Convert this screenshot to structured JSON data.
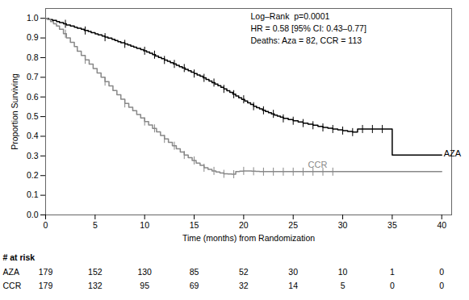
{
  "chart_data": {
    "type": "line",
    "line_style": "step",
    "grid": false,
    "xlabel": "Time (months) from Randomization",
    "ylabel": "Proportion Surviving",
    "xlim": [
      0,
      41
    ],
    "ylim": [
      0.0,
      1.05
    ],
    "xticks": [
      0,
      5,
      10,
      15,
      20,
      25,
      30,
      35,
      40
    ],
    "yticks": [
      {
        "value": 0.0,
        "label": "0.0"
      },
      0.1,
      0.2,
      0.3,
      0.4,
      0.5,
      0.6,
      0.7,
      0.8,
      0.9,
      {
        "value": 1.0,
        "label": "1.0"
      }
    ],
    "annotations": [
      "Log–Rank  p=0.0001\nHR = 0.58 [95% CI: 0.43–0.77]\nDeaths: Aza = 82, CCR = 113"
    ],
    "series": [
      {
        "name": "AZA",
        "color": "#000000",
        "x": [
          0,
          0.3,
          0.7,
          1.1,
          1.4,
          1.8,
          2.1,
          2.5,
          2.9,
          3.2,
          3.6,
          3.9,
          4.3,
          4.6,
          5.0,
          5.3,
          5.7,
          6.0,
          6.3,
          6.7,
          7.0,
          7.3,
          7.6,
          8.0,
          8.3,
          8.6,
          8.9,
          9.2,
          9.6,
          9.9,
          10.2,
          10.5,
          10.8,
          11.1,
          11.4,
          11.7,
          12.0,
          12.3,
          12.6,
          12.9,
          13.2,
          13.5,
          13.8,
          14.1,
          14.4,
          14.7,
          15.0,
          15.3,
          15.6,
          15.9,
          16.2,
          16.5,
          16.8,
          17.1,
          17.4,
          17.7,
          18.0,
          18.3,
          18.6,
          18.9,
          19.2,
          19.5,
          19.8,
          20.1,
          20.4,
          20.7,
          21.0,
          21.3,
          21.6,
          21.9,
          22.2,
          22.5,
          22.8,
          23.1,
          23.4,
          23.7,
          24.0,
          24.5,
          25.0,
          25.5,
          26.0,
          26.5,
          27.0,
          27.5,
          28.0,
          28.5,
          29.0,
          29.5,
          30.0,
          30.5,
          31.0,
          31.5,
          32.0,
          32.5,
          33.0,
          33.5,
          34.0,
          34.5,
          35.0,
          40.0
        ],
        "values": [
          1.0,
          0.994,
          0.989,
          0.983,
          0.978,
          0.972,
          0.966,
          0.961,
          0.955,
          0.95,
          0.944,
          0.938,
          0.933,
          0.927,
          0.921,
          0.916,
          0.91,
          0.904,
          0.899,
          0.893,
          0.887,
          0.881,
          0.876,
          0.87,
          0.864,
          0.858,
          0.853,
          0.847,
          0.841,
          0.835,
          0.829,
          0.822,
          0.815,
          0.808,
          0.801,
          0.795,
          0.788,
          0.781,
          0.774,
          0.768,
          0.761,
          0.754,
          0.747,
          0.74,
          0.733,
          0.726,
          0.719,
          0.712,
          0.705,
          0.697,
          0.689,
          0.681,
          0.673,
          0.665,
          0.657,
          0.649,
          0.641,
          0.632,
          0.623,
          0.614,
          0.605,
          0.596,
          0.588,
          0.579,
          0.57,
          0.562,
          0.553,
          0.546,
          0.539,
          0.532,
          0.526,
          0.52,
          0.514,
          0.508,
          0.502,
          0.497,
          0.491,
          0.485,
          0.479,
          0.473,
          0.467,
          0.461,
          0.456,
          0.45,
          0.445,
          0.441,
          0.437,
          0.433,
          0.429,
          0.425,
          0.421,
          0.437,
          0.437,
          0.437,
          0.437,
          0.437,
          0.437,
          0.437,
          0.305,
          0.305
        ],
        "censor_x": [
          2,
          4,
          6,
          8,
          10,
          11,
          12,
          13,
          14,
          15,
          16,
          17,
          18,
          19,
          20,
          21,
          22,
          23,
          24,
          25,
          26,
          27,
          28,
          29,
          30,
          31,
          32,
          33,
          34
        ],
        "censor_y": [
          0.972,
          0.938,
          0.904,
          0.87,
          0.835,
          0.815,
          0.788,
          0.768,
          0.747,
          0.719,
          0.697,
          0.673,
          0.641,
          0.614,
          0.588,
          0.553,
          0.532,
          0.514,
          0.491,
          0.479,
          0.467,
          0.456,
          0.445,
          0.437,
          0.429,
          0.421,
          0.437,
          0.437,
          0.437
        ]
      },
      {
        "name": "CCR",
        "color": "#888888",
        "x": [
          0,
          0.2,
          0.5,
          0.8,
          1.1,
          1.4,
          1.8,
          2.1,
          2.5,
          2.9,
          3.2,
          3.6,
          4.0,
          4.4,
          4.8,
          5.2,
          5.6,
          6.0,
          6.4,
          6.8,
          7.2,
          7.6,
          8.0,
          8.4,
          8.8,
          9.2,
          9.6,
          10.0,
          10.4,
          10.8,
          11.2,
          11.6,
          12.0,
          12.4,
          12.8,
          13.2,
          13.6,
          14.0,
          14.4,
          14.8,
          15.2,
          15.6,
          16.0,
          16.4,
          16.8,
          17.2,
          17.6,
          18.0,
          18.4,
          18.8,
          19.2,
          19.6,
          20.0,
          20.4,
          20.8,
          21.2,
          21.6,
          22.0,
          22.5,
          23.0,
          23.5,
          24.0,
          24.5,
          25.0,
          25.5,
          26.0,
          26.5,
          27.0,
          27.5,
          28.0,
          28.5,
          29.0,
          29.5,
          30.0,
          40.0
        ],
        "values": [
          1.0,
          0.994,
          0.983,
          0.972,
          0.961,
          0.944,
          0.922,
          0.9,
          0.878,
          0.856,
          0.833,
          0.811,
          0.789,
          0.767,
          0.744,
          0.722,
          0.7,
          0.678,
          0.656,
          0.633,
          0.611,
          0.589,
          0.567,
          0.548,
          0.53,
          0.511,
          0.493,
          0.475,
          0.457,
          0.44,
          0.422,
          0.404,
          0.387,
          0.369,
          0.352,
          0.336,
          0.32,
          0.305,
          0.291,
          0.277,
          0.264,
          0.252,
          0.24,
          0.232,
          0.224,
          0.218,
          0.213,
          0.209,
          0.208,
          0.207,
          0.22,
          0.222,
          0.224,
          0.224,
          0.222,
          0.221,
          0.22,
          0.22,
          0.22,
          0.22,
          0.22,
          0.22,
          0.22,
          0.22,
          0.22,
          0.22,
          0.22,
          0.22,
          0.22,
          0.22,
          0.22,
          0.22,
          0.22,
          0.22,
          0.22
        ],
        "censor_x": [
          2,
          4,
          6,
          8,
          10,
          11,
          12,
          13,
          14,
          15,
          16,
          17,
          18,
          19,
          20,
          21,
          22,
          23,
          24,
          25,
          26,
          27,
          28,
          29
        ],
        "censor_y": [
          0.922,
          0.789,
          0.678,
          0.567,
          0.475,
          0.44,
          0.387,
          0.352,
          0.305,
          0.277,
          0.24,
          0.224,
          0.209,
          0.207,
          0.224,
          0.222,
          0.22,
          0.22,
          0.22,
          0.22,
          0.22,
          0.22,
          0.22,
          0.22
        ]
      }
    ],
    "risk_table": {
      "title": "# at risk",
      "x": [
        0,
        5,
        10,
        15,
        20,
        25,
        30,
        35,
        40
      ],
      "rows": [
        {
          "name": "AZA",
          "values": [
            179,
            152,
            130,
            85,
            52,
            30,
            10,
            1,
            0
          ]
        },
        {
          "name": "CCR",
          "values": [
            179,
            132,
            95,
            69,
            32,
            14,
            5,
            0,
            0
          ]
        }
      ]
    }
  }
}
